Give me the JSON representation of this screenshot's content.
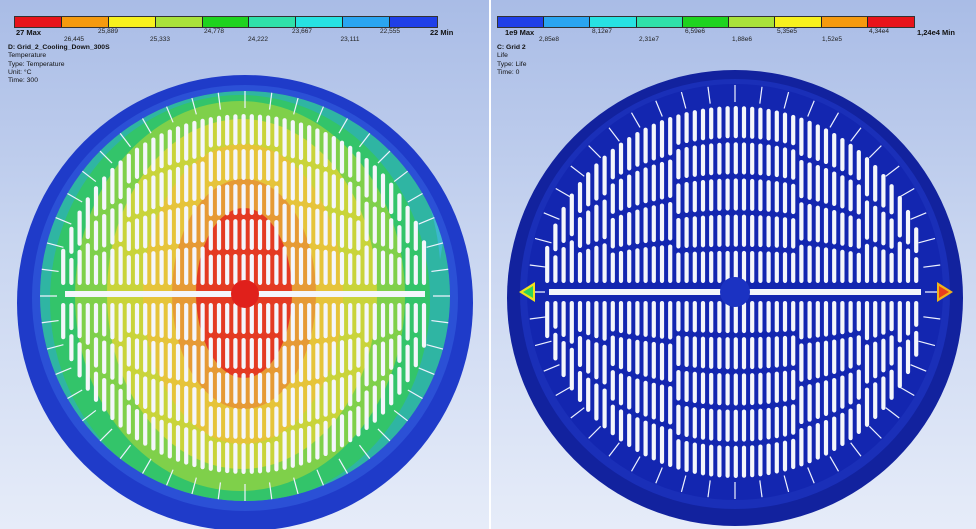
{
  "left_view": {
    "legend": {
      "max_label": "27 Max",
      "min_label": "22 Min",
      "ticks_upper": [
        "25,889",
        "24,778",
        "23,667",
        "22,555"
      ],
      "ticks_lower": [
        "26,445",
        "25,333",
        "24,222",
        "23,111"
      ],
      "colors": [
        "#e8131a",
        "#f59a0f",
        "#f7f11e",
        "#a9e23a",
        "#1fd31f",
        "#2fe0a9",
        "#27e2e2",
        "#2aa5f0",
        "#1f3fe8"
      ]
    },
    "info": {
      "title": "D: Grid_2_Cooling_Down_300S",
      "quantity": "Temperature",
      "type": "Type: Temperature",
      "unit": "Unit: °C",
      "time": "Time: 300"
    }
  },
  "right_view": {
    "legend": {
      "max_label": "1e9 Max",
      "min_label": "1,24e4 Min",
      "ticks_upper": [
        "8,12e7",
        "6,59e6",
        "5,35e5",
        "4,34e4"
      ],
      "ticks_lower": [
        "2,85e8",
        "2,31e7",
        "1,88e6",
        "1,52e5"
      ],
      "colors": [
        "#1f3fe8",
        "#2aa5f0",
        "#27e2e2",
        "#2fe0a9",
        "#1fd31f",
        "#a9e23a",
        "#f7f11e",
        "#f59a0f",
        "#e8131a"
      ]
    },
    "info": {
      "title": "C: Grid 2",
      "quantity": "Life",
      "type": "Type: Life",
      "time": "Time: 0"
    }
  }
}
